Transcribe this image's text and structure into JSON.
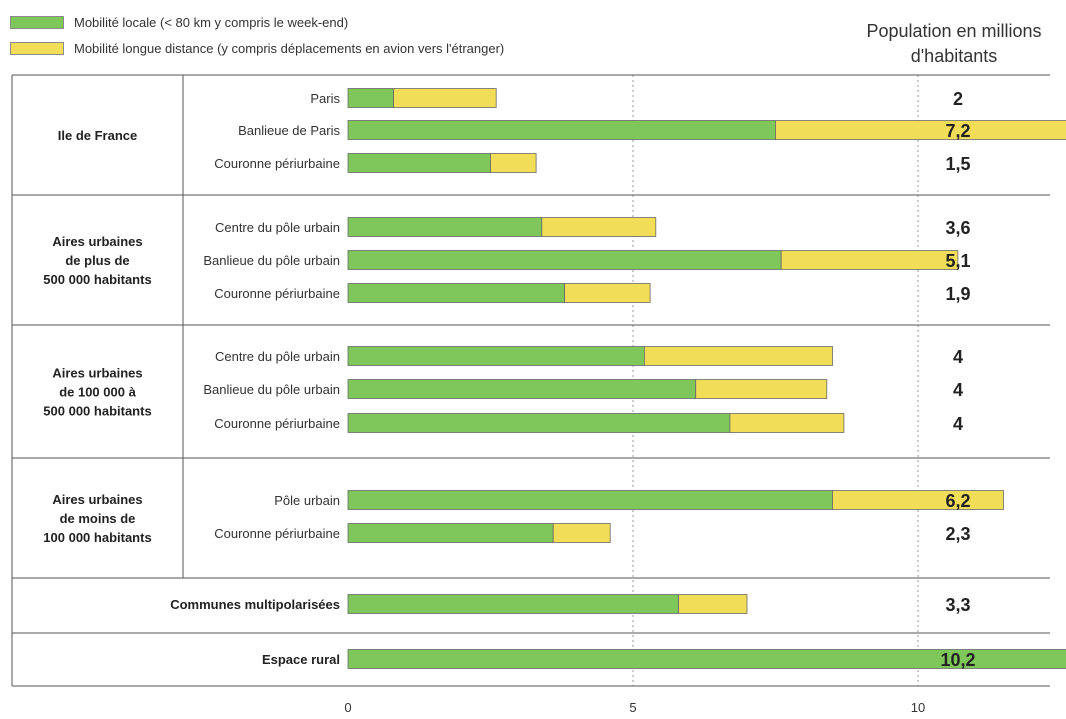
{
  "legend": [
    {
      "label": "Mobilité locale (< 80 km y compris le week-end)",
      "color": "#7fc75a"
    },
    {
      "label": "Mobilité longue distance (y compris  déplacements en avion vers l'étranger)",
      "color": "#f1dd57"
    }
  ],
  "population_header": {
    "line1": "Population en millions",
    "line2": "d'habitants"
  },
  "chart_data": {
    "type": "bar",
    "orientation": "horizontal",
    "stacked": true,
    "xlim": [
      0,
      23.5
    ],
    "x_ticks": [
      "0",
      "5",
      "10",
      "15",
      "20"
    ],
    "series": [
      {
        "name": "Mobilité locale (< 80 km y compris le week-end)",
        "color": "#7fc75a"
      },
      {
        "name": "Mobilité longue distance (y compris  déplacements en avion vers l'étranger)",
        "color": "#f1dd57"
      }
    ],
    "groups": [
      {
        "label": [
          "Ile de France"
        ],
        "rows": [
          {
            "label": "Paris",
            "local": 0.8,
            "long": 1.8,
            "population": "2"
          },
          {
            "label": "Banlieue de Paris",
            "local": 7.5,
            "long": 5.5,
            "population": "7,2"
          },
          {
            "label": "Couronne périurbaine",
            "local": 2.5,
            "long": 0.8,
            "population": "1,5"
          }
        ]
      },
      {
        "label": [
          "Aires urbaines",
          "de plus de",
          "500 000 habitants"
        ],
        "rows": [
          {
            "label": "Centre du pôle urbain",
            "local": 3.4,
            "long": 2.0,
            "population": "3,6"
          },
          {
            "label": "Banlieue du pôle urbain",
            "local": 7.6,
            "long": 3.1,
            "population": "5,1"
          },
          {
            "label": "Couronne périurbaine",
            "local": 3.8,
            "long": 1.5,
            "population": "1,9"
          }
        ]
      },
      {
        "label": [
          "Aires urbaines",
          "de 100 000 à",
          "500 000 habitants"
        ],
        "rows": [
          {
            "label": "Centre du pôle urbain",
            "local": 5.2,
            "long": 3.3,
            "population": "4"
          },
          {
            "label": "Banlieue du pôle urbain",
            "local": 6.1,
            "long": 2.3,
            "population": "4"
          },
          {
            "label": "Couronne périurbaine",
            "local": 6.7,
            "long": 2.0,
            "population": "4"
          }
        ]
      },
      {
        "label": [
          "Aires urbaines",
          "de moins de",
          "100 000 habitants"
        ],
        "rows": [
          {
            "label": "Pôle urbain",
            "local": 8.5,
            "long": 3.0,
            "population": "6,2"
          },
          {
            "label": "Couronne périurbaine",
            "local": 3.6,
            "long": 1.0,
            "population": "2,3"
          }
        ]
      },
      {
        "label": [
          "Communes multipolarisées"
        ],
        "rows": [
          {
            "label": "",
            "local": 5.8,
            "long": 1.2,
            "population": "3,3"
          }
        ]
      },
      {
        "label": [
          "Espace rural"
        ],
        "rows": [
          {
            "label": "",
            "local": 15.2,
            "long": 4.3,
            "population": "10,2"
          }
        ]
      }
    ]
  }
}
